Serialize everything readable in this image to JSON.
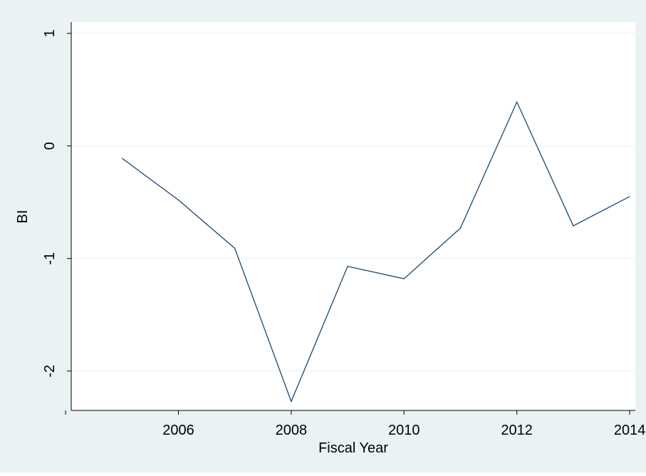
{
  "colors": {
    "outer_background": "#eaf2f3",
    "plot_background": "#ffffff",
    "grid": "#eaf2f3",
    "line": "#1a476f",
    "axis": "#000000"
  },
  "chart_data": {
    "type": "line",
    "title": "",
    "xlabel": "Fiscal Year",
    "ylabel": "BI",
    "x": [
      2005,
      2006,
      2007,
      2008,
      2009,
      2010,
      2011,
      2012,
      2013,
      2014
    ],
    "series": [
      {
        "values": [
          -0.11,
          -0.48,
          -0.91,
          -2.27,
          -1.07,
          -1.18,
          -0.73,
          0.39,
          -0.71,
          -0.45
        ]
      }
    ],
    "xlim": [
      2004.1,
      2014.1
    ],
    "ylim": [
      -2.35,
      1.1
    ],
    "x_ticks": [
      2004,
      2006,
      2008,
      2010,
      2012,
      2014
    ],
    "x_tick_labels": [
      "",
      "2006",
      "2008",
      "2010",
      "2012",
      "2014"
    ],
    "y_ticks": [
      -2,
      -1,
      0,
      1
    ],
    "y_tick_labels": [
      "-2",
      "-1",
      "0",
      "1"
    ],
    "grid": true,
    "legend": "none"
  }
}
